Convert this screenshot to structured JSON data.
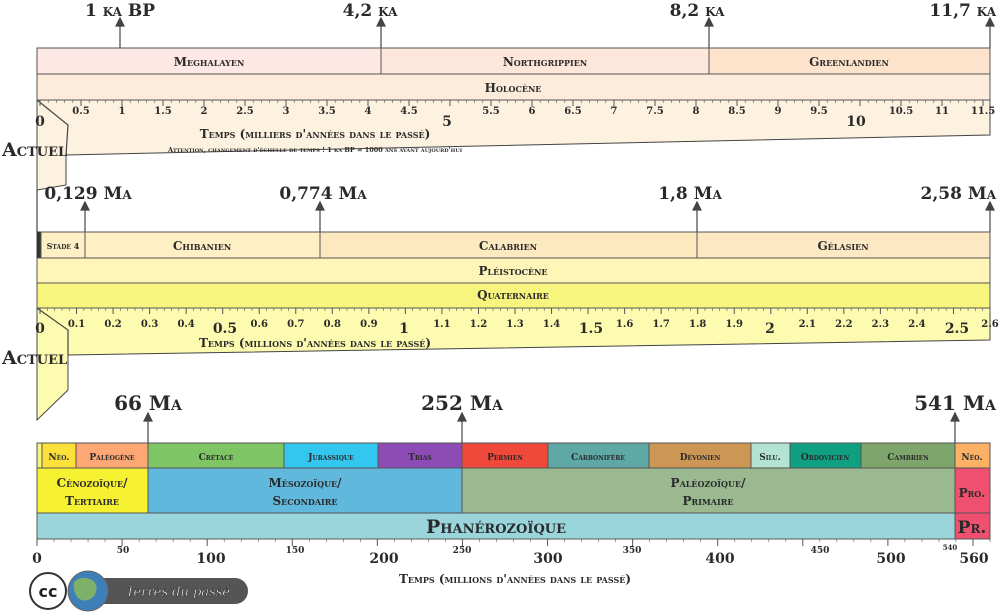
{
  "holocene": {
    "top_marks": [
      "1 ka BP",
      "4,2 ka",
      "8,2 ka",
      "11,7 ka"
    ],
    "stages": [
      "Meghalayen",
      "Northgrippien",
      "Greenlandien"
    ],
    "series_name": "Holocène",
    "ticks_major": [
      "0",
      "5",
      "10"
    ],
    "ticks_minor": [
      "0.5",
      "1",
      "1.5",
      "2",
      "2.5",
      "3",
      "3.5",
      "4",
      "4.5",
      "5.5",
      "6",
      "6.5",
      "7",
      "7.5",
      "8",
      "8.5",
      "9",
      "9.5",
      "10.5",
      "11",
      "11.5"
    ],
    "axis_label": "Temps (milliers d'années dans le passé)",
    "note": "Attention, changement d'échelle de temps ! 1 ka BP = 1000 ans avant aujourd'hui",
    "actuel": "Actuel"
  },
  "quaternary": {
    "top_marks": [
      "0,129 Ma",
      "0,774 Ma",
      "1,8 Ma",
      "2,58 Ma"
    ],
    "stages": [
      "Stade 4",
      "Chibanien",
      "Calabrien",
      "Gélasien"
    ],
    "series_name": "Pléistocène",
    "system_name": "Quaternaire",
    "ticks_major": [
      "0",
      "0.5",
      "1",
      "1.5",
      "2",
      "2.5"
    ],
    "ticks_minor": [
      "0.1",
      "0.2",
      "0.3",
      "0.4",
      "0.6",
      "0.7",
      "0.8",
      "0.9",
      "1.1",
      "1.2",
      "1.3",
      "1.4",
      "1.6",
      "1.7",
      "1.8",
      "1.9",
      "2.1",
      "2.2",
      "2.3",
      "2.4",
      "2.6"
    ],
    "axis_label": "Temps (millions d'années dans le passé)",
    "actuel": "Actuel"
  },
  "phanerozoic": {
    "top_marks": [
      "66 Ma",
      "252 Ma",
      "541 Ma"
    ],
    "periods": [
      "Néo.",
      "Paléogène",
      "Crétacé",
      "Jurassique",
      "Trias",
      "Permien",
      "Carbonifère",
      "Dévonien",
      "Silu.",
      "Ordovicien",
      "Cambrien",
      "Néo."
    ],
    "eras": [
      "Cénozoïque/",
      "Tertiaire",
      "Mésozoïque/",
      "Secondaire",
      "Paléozoïque/",
      "Primaire",
      "Pro."
    ],
    "eon": "Phanérozoïque",
    "eon_pr": "Pr.",
    "ticks_major": [
      "0",
      "100",
      "200",
      "300",
      "400",
      "500",
      "560"
    ],
    "ticks_minor": [
      "50",
      "150",
      "250",
      "350",
      "450",
      "540"
    ],
    "axis_label": "Temps (millions d'années dans le passé)"
  },
  "logo": {
    "cc": "cc",
    "text": "Terres du passé"
  },
  "colors": {
    "meghalayen": "#fde8e6",
    "northgrippien": "#fde6da",
    "greenlandien": "#fde3cc",
    "holocene": "#fdecdb",
    "zoom1": "#fdf1df",
    "chibanien": "#ffefc5",
    "calabrien": "#fde9c0",
    "gelasien": "#fde8c4",
    "pleistocene": "#fff5b9",
    "quaternaire": "#f8f57e",
    "zoom2": "#fdfbb0",
    "neogene": "#fde13a",
    "paleogene": "#fda774",
    "cretace": "#7ec565",
    "jurassique": "#33c6ef",
    "trias": "#8c4bb5",
    "permien": "#f0483a",
    "carbonifere": "#5ea8a6",
    "devonien": "#cc9655",
    "silurien": "#b3e3d3",
    "ordovicien": "#0fa082",
    "cambrien": "#7ea56c",
    "neoprot": "#fdb165",
    "cenozoique": "#f6f231",
    "mesozoique": "#61b8dd",
    "paleozoique": "#9ab990",
    "proterozoique": "#f0506f",
    "phanerozoique": "#9ad5dc"
  }
}
